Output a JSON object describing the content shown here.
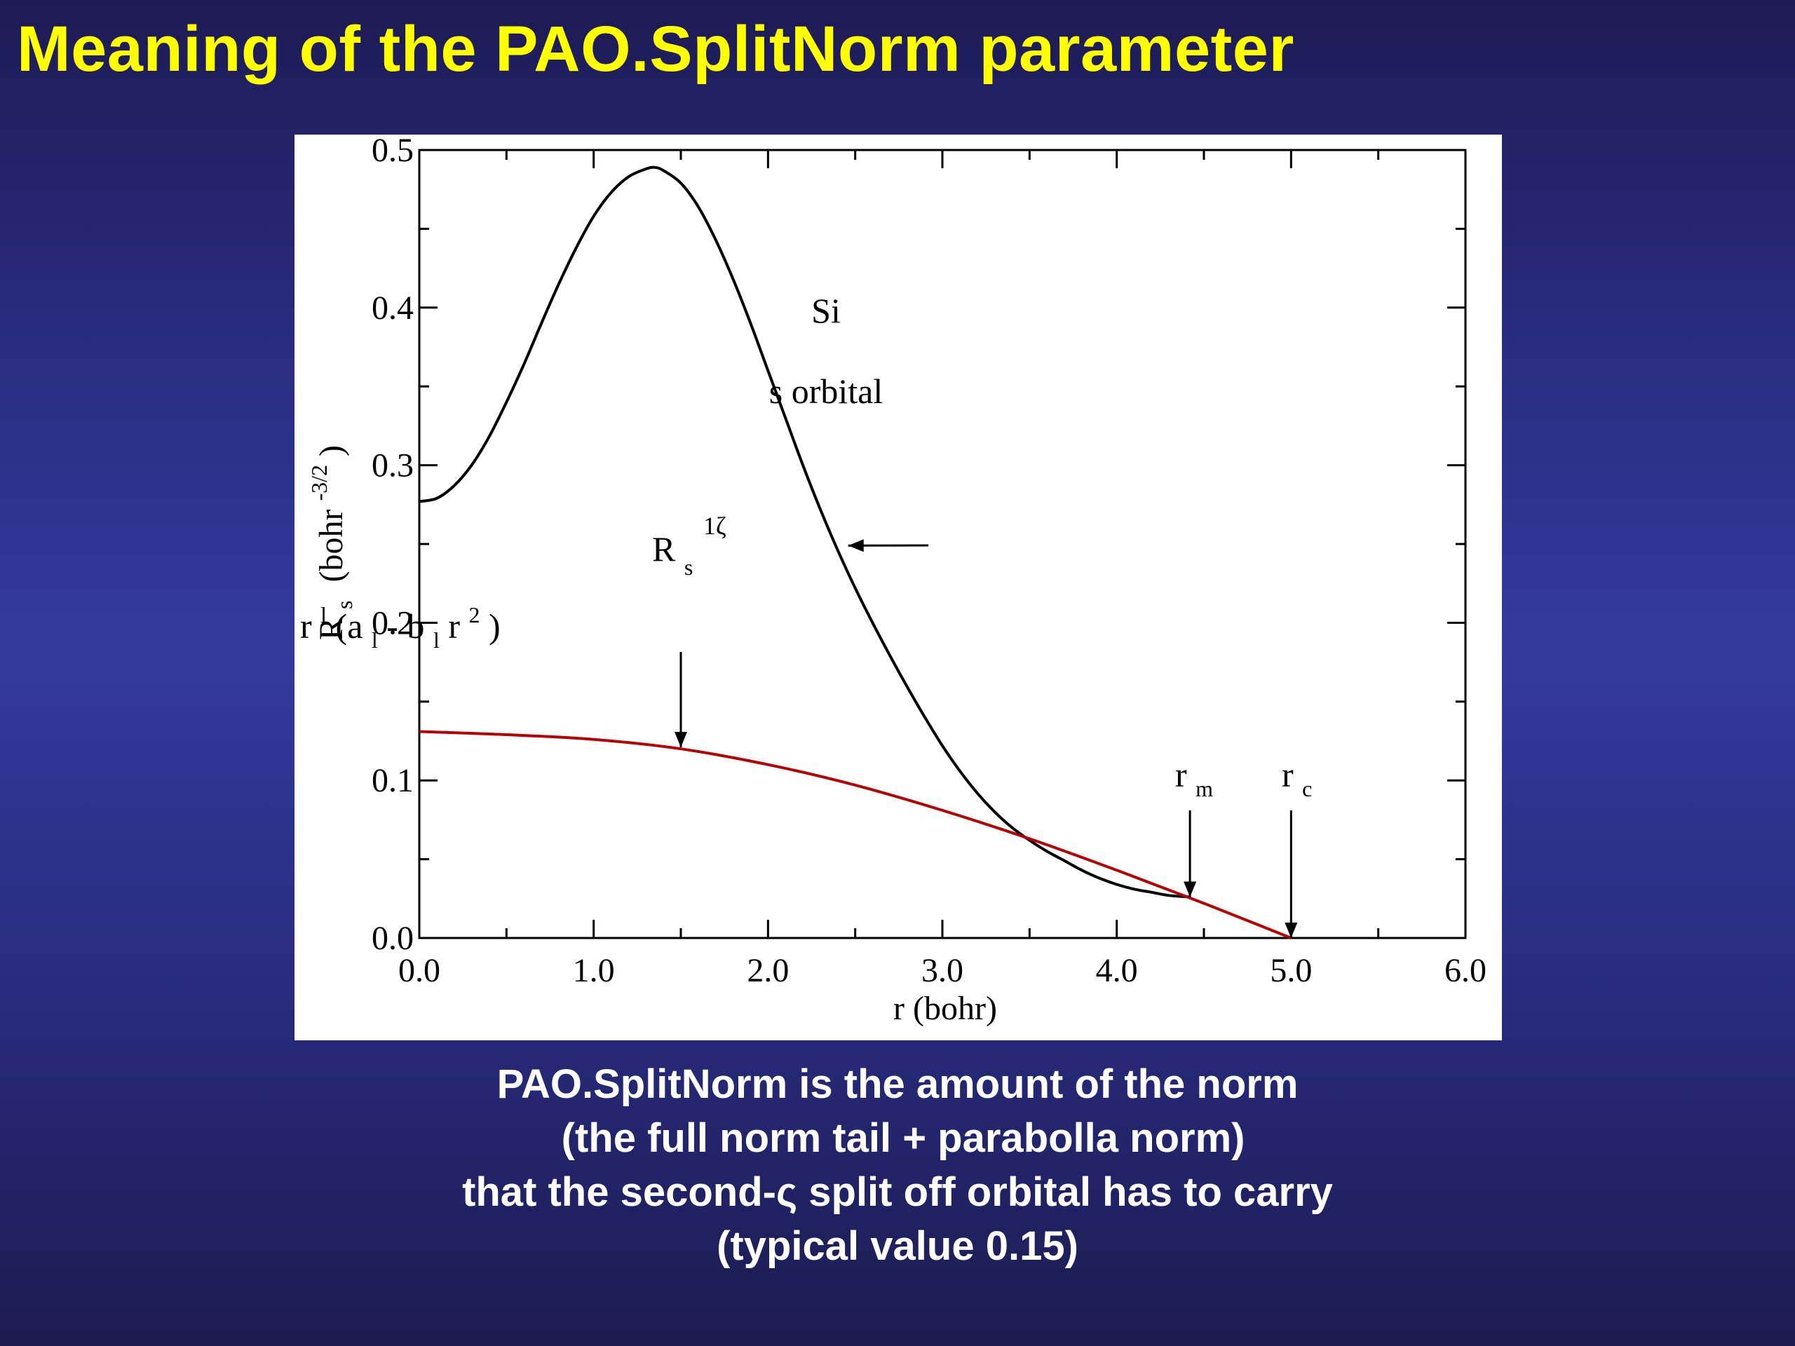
{
  "slide": {
    "title": "Meaning of the PAO.SplitNorm parameter",
    "caption_lines": [
      "PAO.SplitNorm is the amount of the norm",
      " (the full norm tail + parabolla norm)",
      "that the second-ς split off orbital has to carry",
      "(typical value 0.15)"
    ]
  },
  "chart_data": {
    "type": "line",
    "xlabel": "r (bohr)",
    "ylabel": "R",
    "ylabel_sub": "s",
    "ylabel_unit_pre": "(bohr",
    "ylabel_unit_sup": "-3/2",
    "ylabel_unit_post": ")",
    "xlim": [
      0.0,
      6.0
    ],
    "ylim": [
      0.0,
      0.5
    ],
    "x_ticks": [
      "0.0",
      "1.0",
      "2.0",
      "3.0",
      "4.0",
      "5.0",
      "6.0"
    ],
    "y_ticks": [
      "0.0",
      "0.1",
      "0.2",
      "0.3",
      "0.4",
      "0.5"
    ],
    "grid": false,
    "annotations": {
      "element": "Si",
      "orbital": "s orbital",
      "r1z_label_main": "R",
      "r1z_label_sub": "s",
      "r1z_label_sup": "1ζ",
      "parabola_label": {
        "r": "r",
        "sup1": "l",
        "open": " (a",
        "sub1": "l",
        "minus": " - b",
        "sub2": "l",
        "r2": "r",
        "sup2": "2",
        "close": ")"
      },
      "rm_main": "r",
      "rm_sub": "m",
      "rc_main": "r",
      "rc_sub": "c",
      "rm_value": 4.42,
      "rc_value": 5.0
    },
    "series": [
      {
        "color": "#000000",
        "x": [
          0.0,
          0.1,
          0.2,
          0.3,
          0.4,
          0.5,
          0.6,
          0.7,
          0.8,
          0.9,
          1.0,
          1.1,
          1.2,
          1.3,
          1.35,
          1.4,
          1.5,
          1.6,
          1.7,
          1.8,
          1.9,
          2.0,
          2.1,
          2.2,
          2.3,
          2.4,
          2.5,
          2.6,
          2.7,
          2.8,
          2.9,
          3.0,
          3.1,
          3.2,
          3.3,
          3.4,
          3.5,
          3.6,
          3.7,
          3.8,
          3.9,
          4.0,
          4.1,
          4.2,
          4.3,
          4.42
        ],
        "y": [
          0.277,
          0.279,
          0.287,
          0.3,
          0.318,
          0.34,
          0.364,
          0.39,
          0.415,
          0.438,
          0.458,
          0.473,
          0.483,
          0.488,
          0.489,
          0.487,
          0.479,
          0.464,
          0.443,
          0.418,
          0.39,
          0.36,
          0.33,
          0.3,
          0.272,
          0.246,
          0.222,
          0.2,
          0.179,
          0.159,
          0.14,
          0.122,
          0.106,
          0.092,
          0.08,
          0.07,
          0.062,
          0.055,
          0.049,
          0.043,
          0.038,
          0.034,
          0.031,
          0.029,
          0.027,
          0.026
        ]
      },
      {
        "color": "#b40000",
        "x": [
          0.0,
          0.5,
          1.0,
          1.5,
          2.0,
          2.5,
          3.0,
          3.5,
          4.0,
          4.5,
          5.0
        ],
        "y": [
          0.131,
          0.129,
          0.126,
          0.12,
          0.11,
          0.097,
          0.081,
          0.063,
          0.043,
          0.022,
          0.0
        ]
      }
    ]
  }
}
